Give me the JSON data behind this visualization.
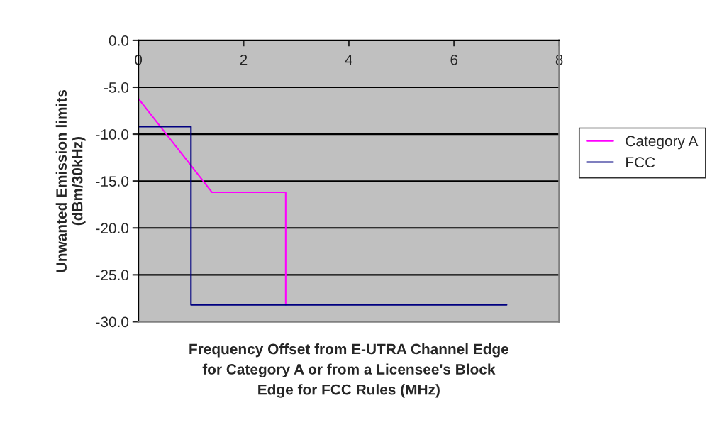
{
  "chart_data": {
    "type": "line",
    "xlabel": "Frequency Offset from E-UTRA Channel Edge\nfor Category A or from a Licensee's Block\nEdge for FCC Rules (MHz)",
    "ylabel": "Unwanted Emission limits\n(dBm/30kHz)",
    "series": [
      {
        "name": "Category A",
        "color": "#ff00ff",
        "x": [
          0,
          1.4,
          2.8,
          2.8
        ],
        "values": [
          -6.2,
          -16.2,
          -16.2,
          -28.2
        ]
      },
      {
        "name": "FCC",
        "color": "#000080",
        "x": [
          0,
          1.0,
          1.0,
          7.0
        ],
        "values": [
          -9.2,
          -9.2,
          -28.2,
          -28.2
        ]
      }
    ],
    "xlim": [
      0,
      8
    ],
    "xticks": [
      0,
      2,
      4,
      6,
      8
    ],
    "ylim": [
      -30,
      0
    ],
    "yticks": [
      {
        "value": 0,
        "label": "0.0"
      },
      {
        "value": -5,
        "label": "-5.0"
      },
      {
        "value": -10,
        "label": "-10.0"
      },
      {
        "value": -15,
        "label": "-15.0"
      },
      {
        "value": -20,
        "label": "-20.0"
      },
      {
        "value": -25,
        "label": "-25.0"
      },
      {
        "value": -30,
        "label": "-30.0"
      }
    ],
    "grid": "y",
    "legend": "right",
    "marker": "none",
    "line_style": "solid"
  }
}
